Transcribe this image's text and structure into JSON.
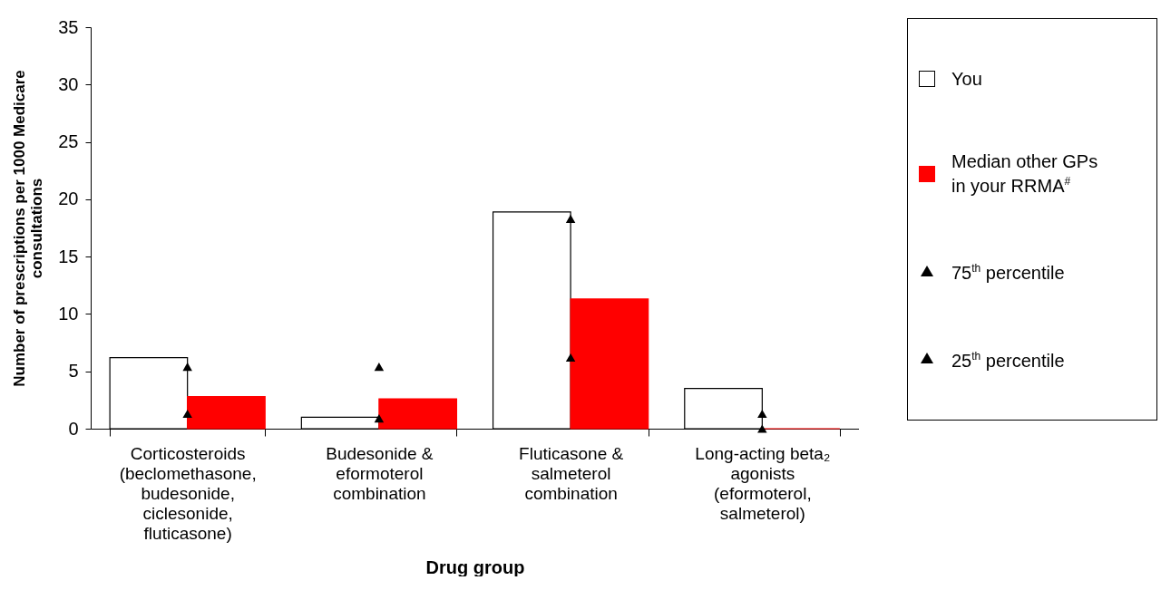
{
  "chart_data": {
    "type": "bar",
    "xlabel": "Drug group",
    "ylabel": "Number of prescriptions per 1000 Medicare\nconsultations",
    "categories": [
      "Corticosteroids\n(beclomethasone,\nbudesonide,\nciclesonide,\nfluticasone)",
      "Budesonide &\neformoterol\ncombination",
      "Fluticasone &\nsalmeterol\ncombination",
      "Long-acting beta₂\nagonists\n(eformoterol,\nsalmeterol)"
    ],
    "series": [
      {
        "name": "You",
        "color": "#ffffff",
        "values": [
          6.2,
          1.0,
          18.9,
          3.5
        ]
      },
      {
        "name": "Median other GPs\nin your RRMA$^{#}$",
        "color": "#ff0000",
        "values": [
          2.8,
          2.6,
          11.3,
          0
        ]
      },
      {
        "name": "75$^{th}$ percentile",
        "type": "scatter",
        "marker": "triangle",
        "color": "#000000",
        "x": [
          "Corticosteroids\n(beclomethasone,\nbudesonide,\nciclesonide,\nfluticasone)",
          "Budesonide &\neformoterol\ncombination",
          "Fluticasone &\nsalmeterol\ncombination",
          "Long-acting beta₂\nagonists\n(eformoterol,\nsalmeterol)"
        ],
        "values": [
          5.4,
          5.4,
          18.3,
          1.3
        ]
      },
      {
        "name": "25$^{th}$ percentile",
        "type": "scatter",
        "marker": "triangle",
        "color": "#000000",
        "x": [
          "Corticosteroids\n(beclomethasone,\nbudesonide,\nciclesonide,\nfluticasone)",
          "Budesonide &\neformoterol\ncombination",
          "Fluticasone &\nsalmeterol\ncombination",
          "Long-acting beta₂\nagonists\n(eformoterol,\nsalmeterol)"
        ],
        "values": [
          1.3,
          0.9,
          6.2,
          0
        ]
      }
    ],
    "ylim": [
      0,
      35
    ],
    "yticks": [
      0,
      5,
      10,
      15,
      20,
      25,
      30,
      35
    ],
    "grid": false,
    "legend": "right"
  }
}
